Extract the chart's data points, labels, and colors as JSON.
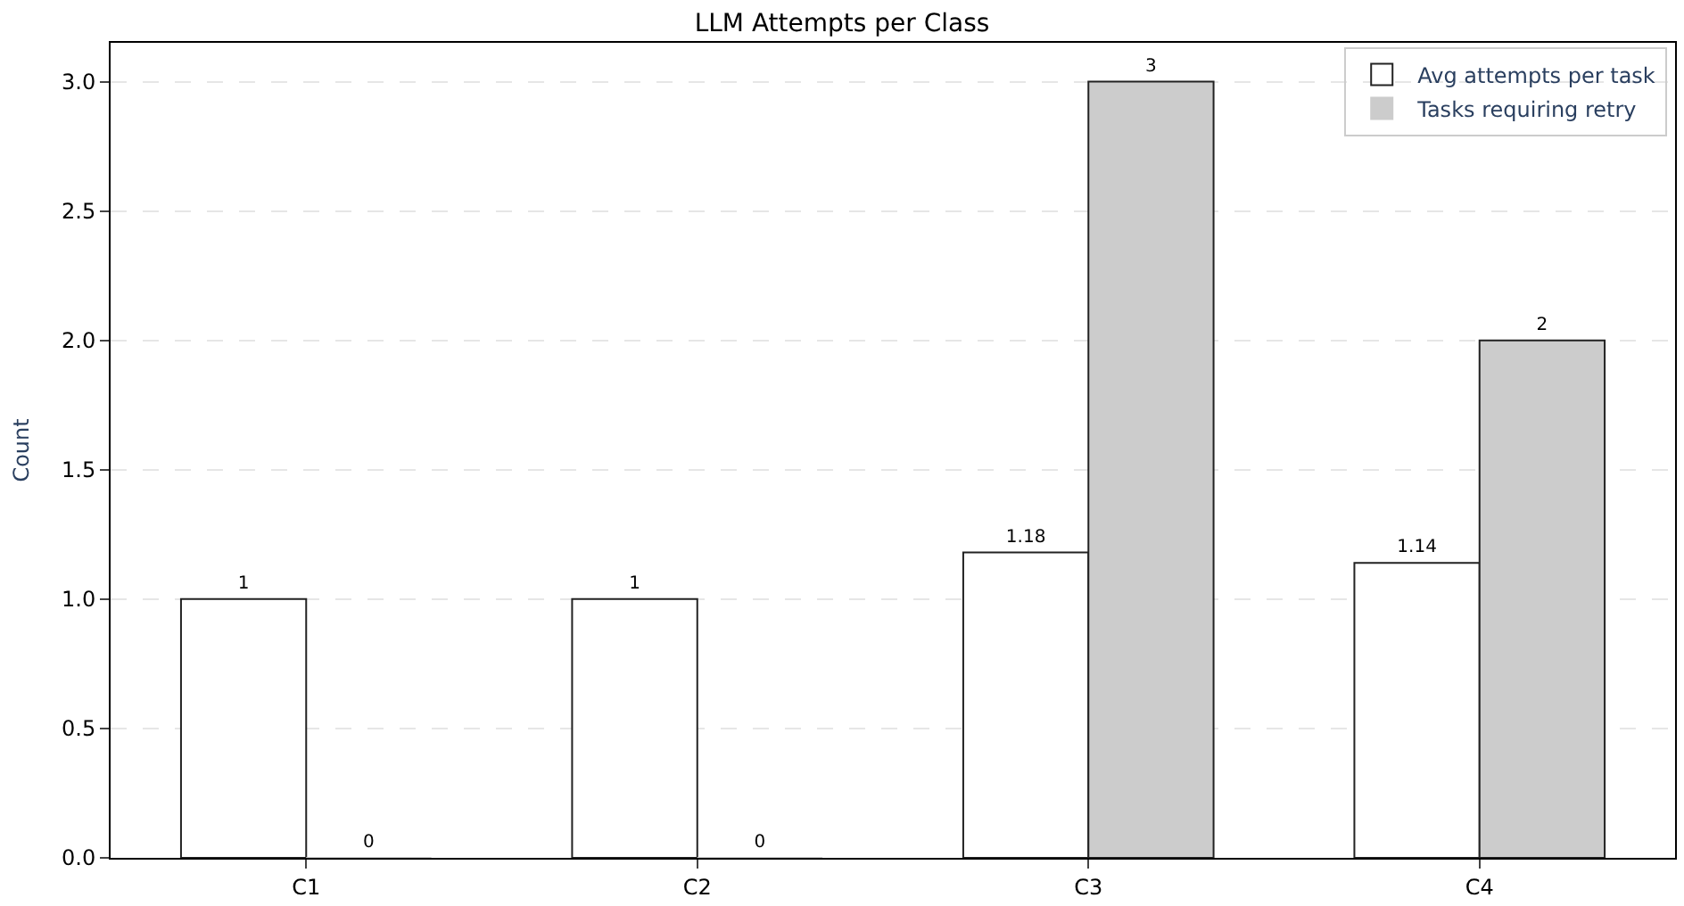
{
  "chart_data": {
    "type": "bar",
    "title": "LLM Attempts per Class",
    "ylabel": "Count",
    "categories": [
      "C1",
      "C2",
      "C3",
      "C4"
    ],
    "series": [
      {
        "name": "Avg attempts per task",
        "color": "#ffffff",
        "values": [
          1,
          1,
          1.18,
          1.14
        ],
        "value_labels": [
          "1",
          "1",
          "1.18",
          "1.14"
        ]
      },
      {
        "name": "Tasks requiring retry",
        "color": "#cccccc",
        "values": [
          0,
          0,
          3,
          2
        ],
        "value_labels": [
          "0",
          "0",
          "3",
          "2"
        ]
      }
    ],
    "ylim": [
      0,
      3.15
    ],
    "yticks": [
      {
        "value": 0,
        "label": "0.0"
      },
      {
        "value": 0.5,
        "label": "0.5"
      },
      {
        "value": 1,
        "label": "1.0"
      },
      {
        "value": 1.5,
        "label": "1.5"
      },
      {
        "value": 2,
        "label": "2.0"
      },
      {
        "value": 2.5,
        "label": "2.5"
      },
      {
        "value": 3,
        "label": "3.0"
      }
    ],
    "grid": "y",
    "legend": "top right"
  }
}
